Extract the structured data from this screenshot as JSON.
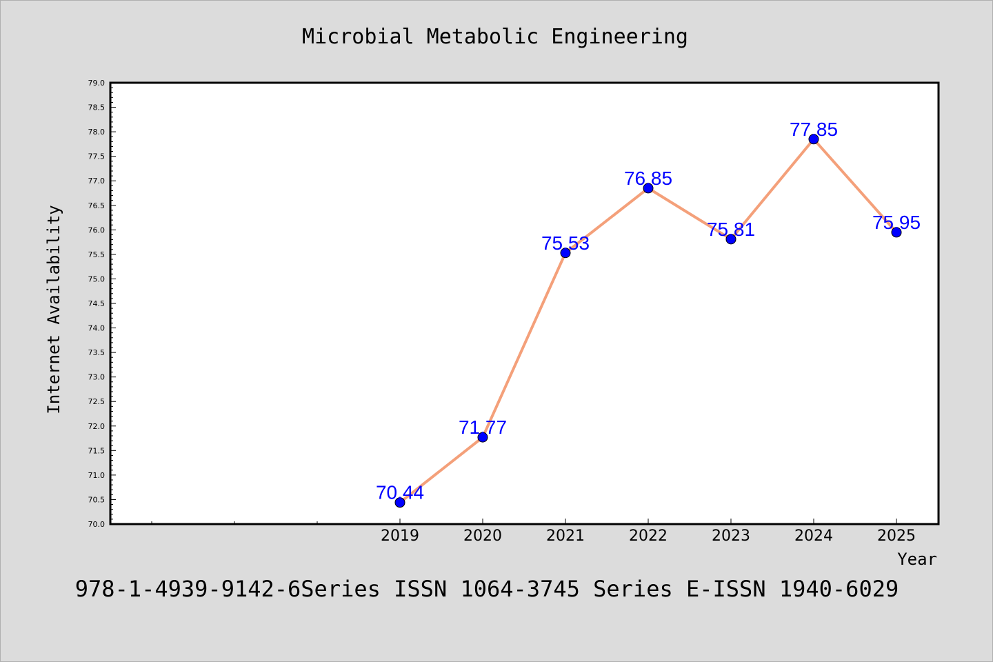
{
  "chart_data": {
    "type": "line",
    "title": "Microbial Metabolic Engineering",
    "xlabel": "Year",
    "ylabel": "Internet Availability",
    "x": [
      "2019",
      "2020",
      "2021",
      "2022",
      "2023",
      "2024",
      "2025"
    ],
    "series": [
      {
        "values": [
          70.44,
          71.77,
          75.53,
          76.85,
          75.81,
          77.85,
          75.95
        ],
        "labels": [
          "70.44",
          "71.77",
          "75.53",
          "76.85",
          "75.81",
          "77.85",
          "75.95"
        ]
      }
    ],
    "ylim": [
      70.0,
      79.0
    ],
    "yticks": [
      "70.0",
      "70.5",
      "71.0",
      "71.5",
      "72.0",
      "72.5",
      "73.0",
      "73.5",
      "74.0",
      "74.5",
      "75.0",
      "75.5",
      "76.0",
      "76.5",
      "77.0",
      "77.5",
      "78.0",
      "78.5",
      "79.0"
    ],
    "grid": false,
    "colors": {
      "line": "#f4a07a",
      "marker": "#0000ff",
      "label": "#0000ff",
      "background": "#dcdcdc",
      "plot_background": "#ffffff"
    }
  },
  "footer": "978-1-4939-9142-6Series ISSN 1064-3745 Series E-ISSN 1940-6029"
}
